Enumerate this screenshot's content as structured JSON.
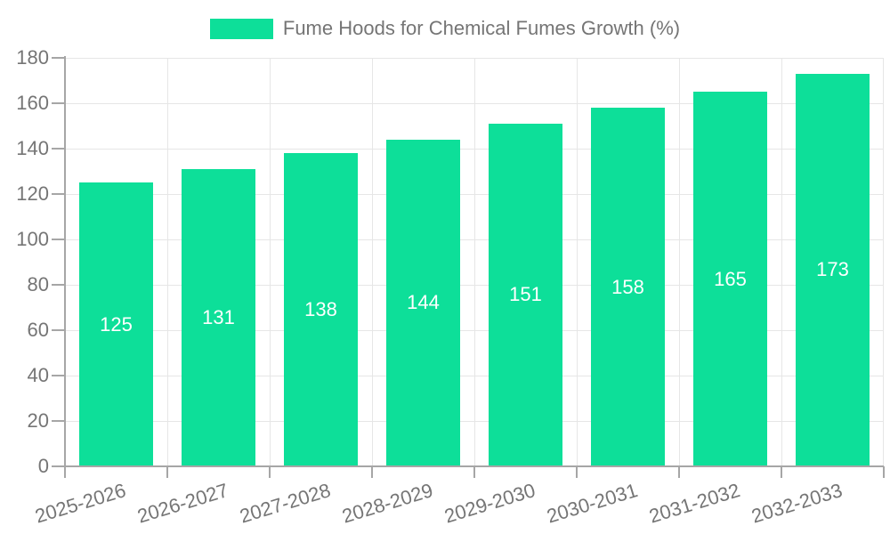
{
  "chart_data": {
    "type": "bar",
    "title": "",
    "legend": {
      "label": "Fume Hoods for Chemical Fumes Growth (%)",
      "position": "top",
      "swatch_color": "#0ddf99"
    },
    "categories": [
      "2025-2026",
      "2026-2027",
      "2027-2028",
      "2028-2029",
      "2029-2030",
      "2030-2031",
      "2031-2032",
      "2032-2033"
    ],
    "series": [
      {
        "name": "Fume Hoods for Chemical Fumes Growth (%)",
        "values": [
          125,
          131,
          138,
          144,
          151,
          158,
          165,
          173
        ]
      }
    ],
    "xlabel": "",
    "ylabel": "",
    "ylim": [
      0,
      180
    ],
    "yticks": [
      0,
      20,
      40,
      60,
      80,
      100,
      120,
      140,
      160,
      180
    ],
    "grid": true,
    "bar_color": "#0ddf99",
    "value_label_color": "#ffffff",
    "axis_text_color": "#757575",
    "gridline_color": "#e6e6e6",
    "axis_line_color": "#a6a6a6"
  }
}
